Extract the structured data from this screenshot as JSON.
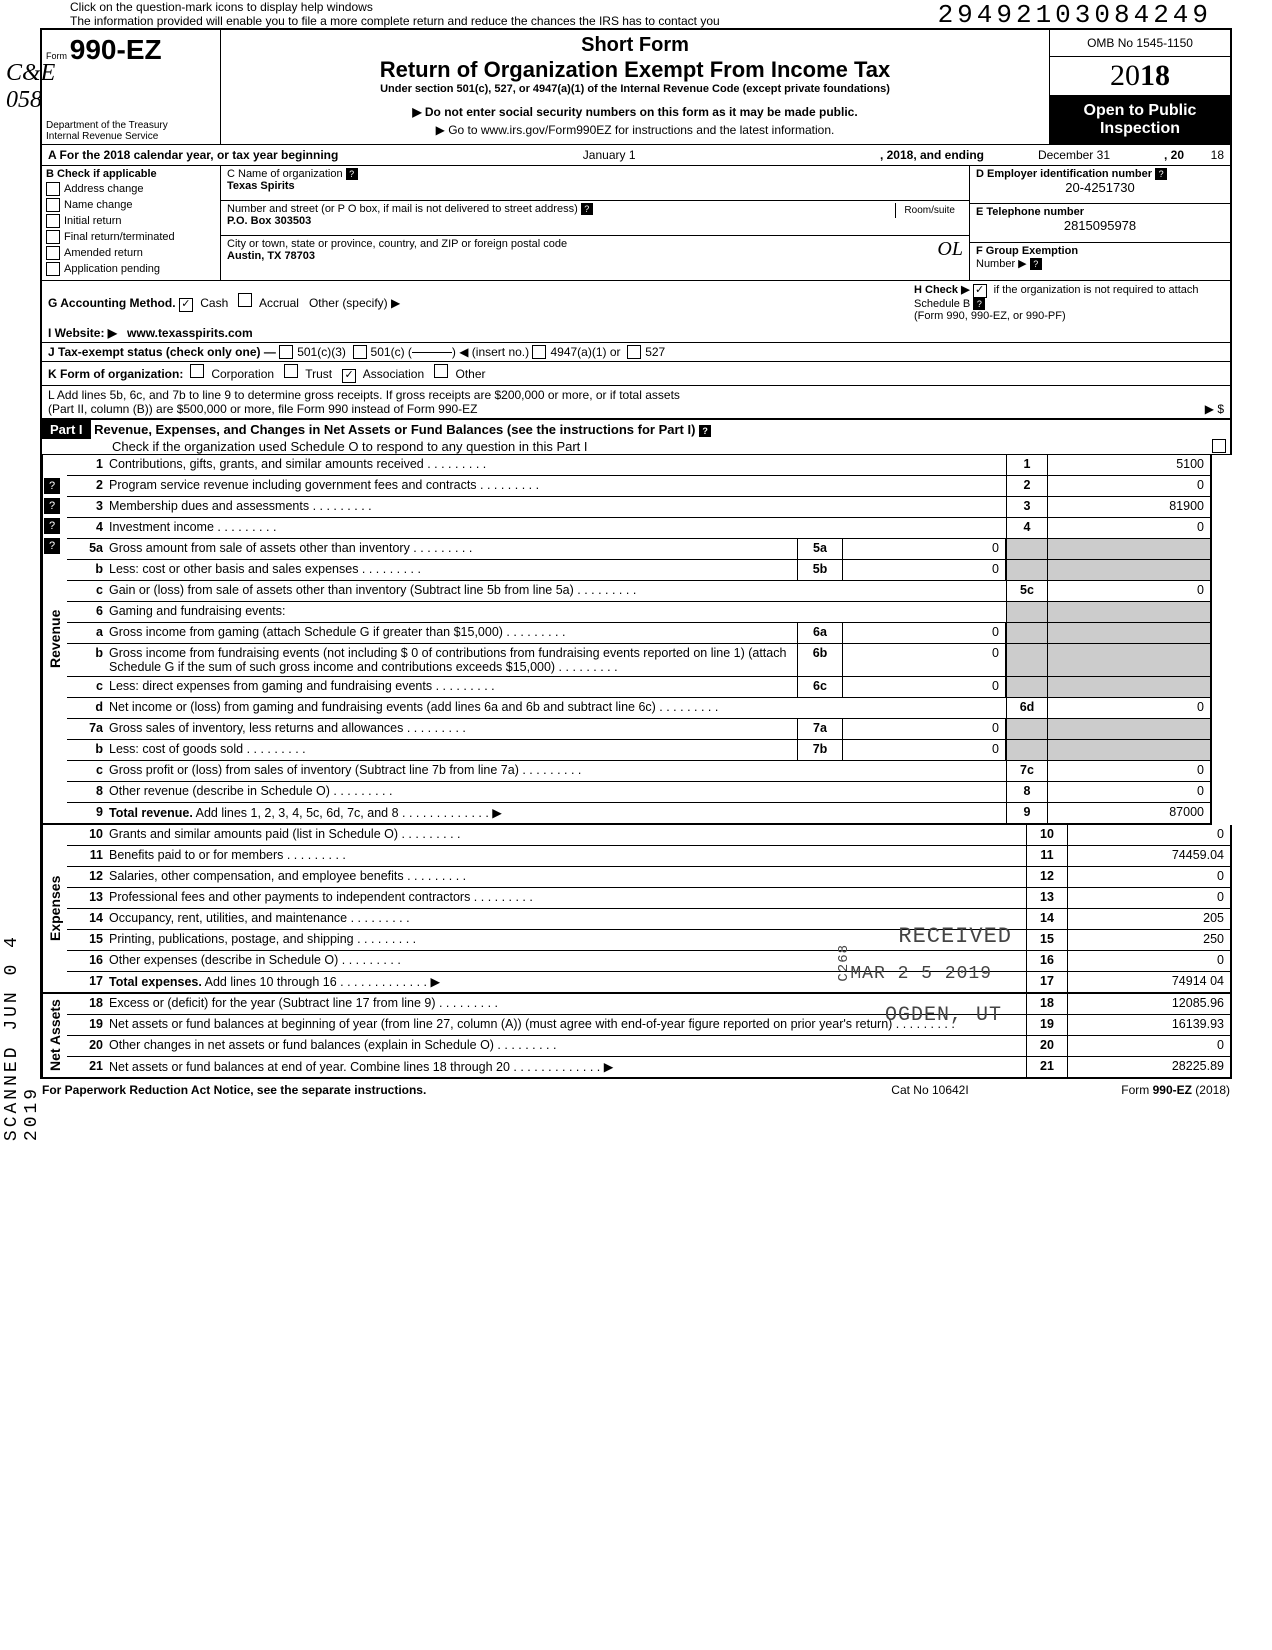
{
  "colors": {
    "text": "#000000",
    "background": "#ffffff",
    "header_black": "#000000",
    "shaded": "#cccccc"
  },
  "top": {
    "hint_line1": "Click on the question-mark icons to display help windows",
    "hint_line2": "The information provided will enable you to file a more complete return and reduce the chances the IRS has to contact you",
    "doc_number": "29492103084249"
  },
  "header": {
    "form_prefix": "Form",
    "form_no": "990-EZ",
    "dept1": "Department of the Treasury",
    "dept2": "Internal Revenue Service",
    "short": "Short Form",
    "title": "Return of Organization Exempt From Income Tax",
    "subtitle": "Under section 501(c), 527, or 4947(a)(1) of the Internal Revenue Code (except private foundations)",
    "arrow1": "▶ Do not enter social security numbers on this form as it may be made public.",
    "arrow2": "▶ Go to www.irs.gov/Form990EZ for instructions and the latest information.",
    "omb": "OMB No 1545-1150",
    "year_prefix": "20",
    "year_bold": "18",
    "open1": "Open to Public",
    "open2": "Inspection"
  },
  "line_a": {
    "prefix": "A  For the 2018 calendar year, or tax year beginning",
    "begin_month": "January 1",
    "mid": ", 2018, and ending",
    "end_month": "December 31",
    "end_suffix": ", 20",
    "end_year": "18"
  },
  "section_b": {
    "label": "B  Check if applicable",
    "options": [
      "Address change",
      "Name change",
      "Initial return",
      "Final return/terminated",
      "Amended return",
      "Application pending"
    ]
  },
  "section_c": {
    "name_label": "C  Name of organization",
    "name_value": "Texas Spirits",
    "street_label": "Number and street (or P O box, if mail is not delivered to street address)",
    "room_label": "Room/suite",
    "street_value": "P.O. Box 303503",
    "city_label": "City or town, state or province, country, and ZIP or foreign postal code",
    "city_value": "Austin, TX 78703"
  },
  "section_d": {
    "label": "D Employer identification number",
    "value": "20-4251730"
  },
  "section_e": {
    "label": "E  Telephone number",
    "value": "2815095978"
  },
  "section_f": {
    "label": "F  Group Exemption",
    "label2": "Number  ▶"
  },
  "line_g": {
    "label": "G  Accounting Method.",
    "cash": "Cash",
    "accrual": "Accrual",
    "other": "Other (specify) ▶"
  },
  "line_h": {
    "text": "H  Check ▶",
    "text2": "if the organization is not required to attach Schedule B",
    "text3": "(Form 990, 990-EZ, or 990-PF)"
  },
  "line_i": {
    "label": "I   Website: ▶",
    "value": "www.texasspirits.com"
  },
  "line_j": {
    "label": "J  Tax-exempt status (check only one) —",
    "opt1": "501(c)(3)",
    "opt2": "501(c) (",
    "insert": ") ◀ (insert no.)",
    "opt3": "4947(a)(1) or",
    "opt4": "527"
  },
  "line_k": {
    "label": "K  Form of organization:",
    "opts": [
      "Corporation",
      "Trust",
      "Association",
      "Other"
    ]
  },
  "line_l": {
    "text1": "L  Add lines 5b, 6c, and 7b to line 9 to determine gross receipts. If gross receipts are $200,000 or more, or if total assets",
    "text2": "(Part II, column (B)) are $500,000 or more, file Form 990 instead of Form 990-EZ",
    "arrow": "▶  $"
  },
  "part1": {
    "label": "Part I",
    "title": "Revenue, Expenses, and Changes in Net Assets or Fund Balances (see the instructions for Part I)",
    "checkline": "Check if the organization used Schedule O to respond to any question in this Part I"
  },
  "revenue_rows": [
    {
      "n": "1",
      "desc": "Contributions, gifts, grants, and similar amounts received",
      "end_n": "1",
      "end_v": "5100"
    },
    {
      "n": "2",
      "desc": "Program service revenue including government fees and contracts",
      "end_n": "2",
      "end_v": "0"
    },
    {
      "n": "3",
      "desc": "Membership dues and assessments",
      "end_n": "3",
      "end_v": "81900"
    },
    {
      "n": "4",
      "desc": "Investment income",
      "end_n": "4",
      "end_v": "0"
    },
    {
      "n": "5a",
      "desc": "Gross amount from sale of assets other than inventory",
      "mid_n": "5a",
      "mid_v": "0"
    },
    {
      "n": "b",
      "desc": "Less: cost or other basis and sales expenses",
      "mid_n": "5b",
      "mid_v": "0"
    },
    {
      "n": "c",
      "desc": "Gain or (loss) from sale of assets other than inventory (Subtract line 5b from line 5a)",
      "end_n": "5c",
      "end_v": "0"
    },
    {
      "n": "6",
      "desc": "Gaming and fundraising events:"
    },
    {
      "n": "a",
      "desc": "Gross income from gaming (attach Schedule G if greater than $15,000)",
      "mid_n": "6a",
      "mid_v": "0"
    },
    {
      "n": "b",
      "desc": "Gross income from fundraising events (not including  $                               0 of contributions from fundraising events reported on line 1) (attach Schedule G if the sum of such gross income and contributions exceeds $15,000)",
      "mid_n": "6b",
      "mid_v": "0"
    },
    {
      "n": "c",
      "desc": "Less: direct expenses from gaming and fundraising events",
      "mid_n": "6c",
      "mid_v": "0"
    },
    {
      "n": "d",
      "desc": "Net income or (loss) from gaming and fundraising events (add lines 6a and 6b and subtract line 6c)",
      "end_n": "6d",
      "end_v": "0"
    },
    {
      "n": "7a",
      "desc": "Gross sales of inventory, less returns and allowances",
      "mid_n": "7a",
      "mid_v": "0"
    },
    {
      "n": "b",
      "desc": "Less: cost of goods sold",
      "mid_n": "7b",
      "mid_v": "0"
    },
    {
      "n": "c",
      "desc": "Gross profit or (loss) from sales of inventory (Subtract line 7b from line 7a)",
      "end_n": "7c",
      "end_v": "0"
    },
    {
      "n": "8",
      "desc": "Other revenue (describe in Schedule O)",
      "end_n": "8",
      "end_v": "0"
    },
    {
      "n": "9",
      "desc": "Total revenue. Add lines 1, 2, 3, 4, 5c, 6d, 7c, and 8",
      "end_n": "9",
      "end_v": "87000",
      "bold": true,
      "arrow": true
    }
  ],
  "expense_rows": [
    {
      "n": "10",
      "desc": "Grants and similar amounts paid (list in Schedule O)",
      "end_n": "10",
      "end_v": "0"
    },
    {
      "n": "11",
      "desc": "Benefits paid to or for members",
      "end_n": "11",
      "end_v": "74459.04"
    },
    {
      "n": "12",
      "desc": "Salaries, other compensation, and employee benefits",
      "end_n": "12",
      "end_v": "0"
    },
    {
      "n": "13",
      "desc": "Professional fees and other payments to independent contractors",
      "end_n": "13",
      "end_v": "0"
    },
    {
      "n": "14",
      "desc": "Occupancy, rent, utilities, and maintenance",
      "end_n": "14",
      "end_v": "205"
    },
    {
      "n": "15",
      "desc": "Printing, publications, postage, and shipping",
      "end_n": "15",
      "end_v": "250"
    },
    {
      "n": "16",
      "desc": "Other expenses (describe in Schedule O)",
      "end_n": "16",
      "end_v": "0"
    },
    {
      "n": "17",
      "desc": "Total expenses. Add lines 10 through 16",
      "end_n": "17",
      "end_v": "74914 04",
      "bold": true,
      "arrow": true
    }
  ],
  "netasset_rows": [
    {
      "n": "18",
      "desc": "Excess or (deficit) for the year (Subtract line 17 from line 9)",
      "end_n": "18",
      "end_v": "12085.96"
    },
    {
      "n": "19",
      "desc": "Net assets or fund balances at beginning of year (from line 27, column (A)) (must agree with end-of-year figure reported on prior year's return)",
      "end_n": "19",
      "end_v": "16139.93"
    },
    {
      "n": "20",
      "desc": "Other changes in net assets or fund balances (explain in Schedule O)",
      "end_n": "20",
      "end_v": "0"
    },
    {
      "n": "21",
      "desc": "Net assets or fund balances at end of year. Combine lines 18 through 20",
      "end_n": "21",
      "end_v": "28225.89",
      "arrow": true
    }
  ],
  "side_labels": {
    "revenue": "Revenue",
    "expenses": "Expenses",
    "netassets": "Net Assets"
  },
  "footer": {
    "left": "For Paperwork Reduction Act Notice, see the separate instructions.",
    "center": "Cat No 10642I",
    "right_prefix": "Form ",
    "right_form": "990-EZ",
    "right_year": " (2018)"
  },
  "stamps": {
    "received": "RECEIVED",
    "date": "MAR 2 5 2019",
    "location": "OGDEN, UT",
    "scanned": "SCANNED JUN 0 4 2019",
    "c268": "C268"
  },
  "annotations": {
    "ce": "C&E",
    "ce_num": "058"
  }
}
